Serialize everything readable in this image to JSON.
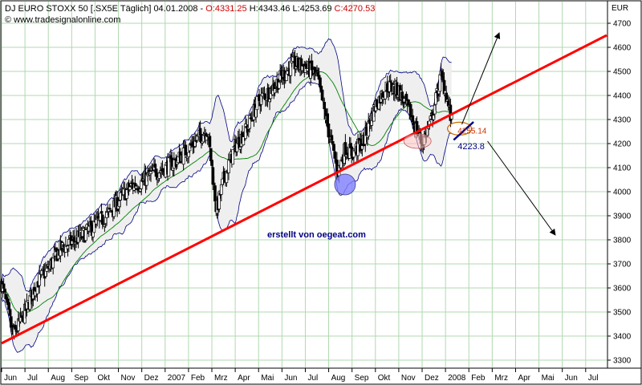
{
  "header": {
    "title": "DJ EURO STOXX 50 [.SX5E  Täglich] 04.01.2008 - ",
    "open": "O:4331.25",
    "high": "H:4343.46",
    "low": "L:4253.69",
    "close": "C:4270.53",
    "source": "© www.tradesignalonline.com",
    "currency": "EUR"
  },
  "annotations": {
    "watermark": "erstellt von oegeat.com",
    "level_upper": "4255.14",
    "level_lower": "4223.8"
  },
  "colors": {
    "up_candle": "#ffffff",
    "down_candle": "#000000",
    "trendline": "#ff0000",
    "bollinger": "#000080",
    "moving_average": "#008000",
    "grid": "#b0d8b0",
    "circle_blue": "#8080ff",
    "circle_red": "#ffc0c0"
  },
  "chart_data": {
    "type": "candlestick",
    "y_ticks": [
      3300,
      3400,
      3500,
      3600,
      3700,
      3800,
      3900,
      4000,
      4100,
      4200,
      4300,
      4400,
      4500,
      4600,
      4700
    ],
    "x_ticks": [
      "Jun",
      "Jul",
      "Aug",
      "Sep",
      "Okt",
      "Nov",
      "Dez",
      "2007",
      "Feb",
      "Mrz",
      "Apr",
      "Mai",
      "Jun",
      "Jul",
      "Aug",
      "Sep",
      "Okt",
      "Nov",
      "Dez",
      "2008",
      "Feb",
      "Mrz",
      "Apr",
      "Mai",
      "Jun",
      "Jul"
    ],
    "ylim": [
      3270,
      4790
    ],
    "x_range": [
      0,
      25.9
    ],
    "grid": true,
    "price_path": [
      [
        0.0,
        3620
      ],
      [
        0.5,
        3400
      ],
      [
        1.0,
        3500
      ],
      [
        1.5,
        3620
      ],
      [
        2.0,
        3680
      ],
      [
        2.5,
        3760
      ],
      [
        3.0,
        3790
      ],
      [
        3.5,
        3820
      ],
      [
        4.0,
        3860
      ],
      [
        4.5,
        3900
      ],
      [
        5.0,
        3960
      ],
      [
        5.5,
        4020
      ],
      [
        6.0,
        4040
      ],
      [
        6.5,
        4080
      ],
      [
        7.0,
        4100
      ],
      [
        7.5,
        4130
      ],
      [
        8.0,
        4180
      ],
      [
        8.5,
        4230
      ],
      [
        8.8,
        4260
      ],
      [
        9.0,
        4100
      ],
      [
        9.2,
        3920
      ],
      [
        9.5,
        4050
      ],
      [
        10.0,
        4190
      ],
      [
        10.5,
        4260
      ],
      [
        11.0,
        4380
      ],
      [
        11.5,
        4420
      ],
      [
        12.0,
        4480
      ],
      [
        12.5,
        4530
      ],
      [
        13.0,
        4520
      ],
      [
        13.5,
        4480
      ],
      [
        14.0,
        4250
      ],
      [
        14.4,
        4080
      ],
      [
        14.7,
        4180
      ],
      [
        15.0,
        4160
      ],
      [
        15.5,
        4210
      ],
      [
        16.0,
        4360
      ],
      [
        16.5,
        4440
      ],
      [
        17.0,
        4420
      ],
      [
        17.5,
        4320
      ],
      [
        18.0,
        4200
      ],
      [
        18.4,
        4300
      ],
      [
        18.8,
        4480
      ],
      [
        19.0,
        4420
      ],
      [
        19.3,
        4270
      ]
    ],
    "trendline": [
      [
        0.0,
        3370
      ],
      [
        25.9,
        4650
      ]
    ],
    "projection_arrows": [
      {
        "from": [
          19.7,
          4280
        ],
        "to": [
          21.3,
          4660
        ]
      },
      {
        "from": [
          20.8,
          4210
        ],
        "to": [
          23.7,
          3820
        ]
      }
    ],
    "circles": [
      {
        "x": 14.7,
        "y": 4030,
        "color": "blue"
      },
      {
        "x": 17.8,
        "y": 4210,
        "color": "red"
      }
    ],
    "level_marks": [
      {
        "value": 4255.14,
        "label": "4255.14"
      },
      {
        "value": 4223.8,
        "label": "4223.8"
      }
    ]
  }
}
